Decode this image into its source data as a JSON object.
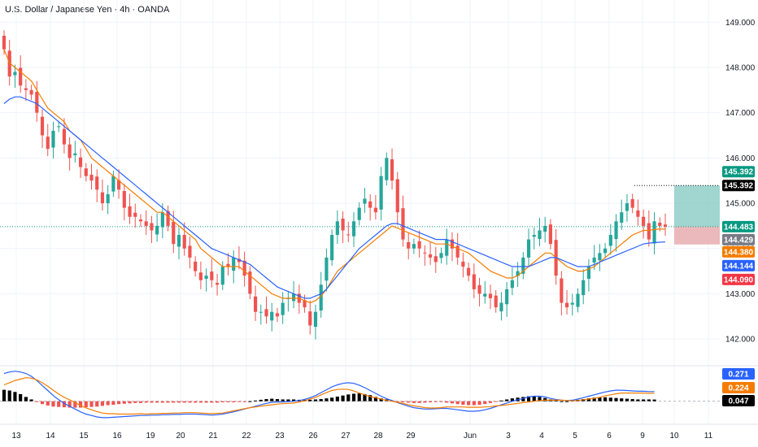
{
  "title": "U.S. Dollar / Japanese Yen · 4h · OANDA",
  "colors": {
    "up": "#26a69a",
    "down": "#ef5350",
    "ma_fast": "#f57c00",
    "ma_slow": "#2962ff",
    "hist_pos": "#000000",
    "hist_neg": "#ef5350",
    "grid": "#f0f3fa",
    "target_zone": "#80c7c0",
    "stop_zone": "#e6a8aa",
    "price_tag": "#089981",
    "black_tag": "#000000",
    "orange_tag": "#f57c00",
    "blue_tag": "#2962ff",
    "red_tag": "#f23645",
    "gray_tag": "#787b86",
    "macd_blue_tag": "#2962ff"
  },
  "chart_data": [
    {
      "type": "candlestick",
      "title": "U.S. Dollar / Japanese Yen · 4h · OANDA",
      "xlabel": "",
      "ylabel": "",
      "ylim": [
        141.5,
        149.4
      ],
      "grid": true,
      "x_ticks": [
        "13",
        "14",
        "15",
        "16",
        "19",
        "20",
        "21",
        "22",
        "23",
        "26",
        "27",
        "28",
        "29",
        "Jun",
        "3",
        "4",
        "5",
        "6",
        "9",
        "10",
        "11"
      ],
      "y_ticks": [
        "142.000",
        "143.000",
        "144.000",
        "145.000",
        "146.000",
        "147.000",
        "148.000",
        "149.000"
      ],
      "closes": [
        148.4,
        147.8,
        147.9,
        147.6,
        147.5,
        147.4,
        147.0,
        146.5,
        146.2,
        146.6,
        146.7,
        146.3,
        146.0,
        146.1,
        145.8,
        145.6,
        145.5,
        145.3,
        145.0,
        145.2,
        145.6,
        145.3,
        144.9,
        144.7,
        144.7,
        144.6,
        144.5,
        144.4,
        144.5,
        144.8,
        144.5,
        144.1,
        144.3,
        144.0,
        143.8,
        143.5,
        143.3,
        143.4,
        143.3,
        143.2,
        143.6,
        143.6,
        143.8,
        143.7,
        143.4,
        143.0,
        142.6,
        142.6,
        142.5,
        142.6,
        142.5,
        142.8,
        142.9,
        143.0,
        142.8,
        142.7,
        142.3,
        142.6,
        143.2,
        143.8,
        144.3,
        144.6,
        144.4,
        144.3,
        144.6,
        144.9,
        145.1,
        144.9,
        144.8,
        145.6,
        146.0,
        145.5,
        144.8,
        144.2,
        144.0,
        144.1,
        144.0,
        143.9,
        143.8,
        143.7,
        143.9,
        144.2,
        144.0,
        143.8,
        143.6,
        143.4,
        143.1,
        143.0,
        143.0,
        142.9,
        142.7,
        142.8,
        143.1,
        143.3,
        143.5,
        143.8,
        144.2,
        144.3,
        144.4,
        144.5,
        144.1,
        143.4,
        142.8,
        142.7,
        142.8,
        143.0,
        143.3,
        143.6,
        143.8,
        143.9,
        144.0,
        144.3,
        144.6,
        144.8,
        145.0,
        144.9,
        144.7,
        144.5,
        144.2,
        144.6,
        144.5,
        144.48
      ],
      "series": [
        {
          "name": "",
          "values": [
            148.4,
            148.1,
            148.0,
            147.9,
            147.8,
            147.7,
            147.5,
            147.3,
            147.1,
            147.0,
            146.9,
            146.8,
            146.6,
            146.5,
            146.4,
            146.2,
            146.0,
            145.9,
            145.8,
            145.7,
            145.6,
            145.5,
            145.4,
            145.3,
            145.2,
            145.1,
            145.0,
            144.9,
            144.8,
            144.8,
            144.7,
            144.6,
            144.5,
            144.4,
            144.3,
            144.2,
            144.0,
            143.9,
            143.8,
            143.7,
            143.6,
            143.6,
            143.6,
            143.6,
            143.5,
            143.4,
            143.3,
            143.2,
            143.1,
            143.0,
            142.95,
            142.9,
            142.9,
            142.9,
            142.9,
            142.85,
            142.8,
            142.85,
            142.95,
            143.1,
            143.3,
            143.5,
            143.6,
            143.7,
            143.8,
            143.9,
            144.0,
            144.1,
            144.2,
            144.3,
            144.4,
            144.5,
            144.45,
            144.4,
            144.35,
            144.3,
            144.25,
            144.2,
            144.15,
            144.1,
            144.1,
            144.1,
            144.05,
            144.0,
            143.95,
            143.9,
            143.8,
            143.7,
            143.6,
            143.5,
            143.45,
            143.4,
            143.35,
            143.35,
            143.4,
            143.5,
            143.6,
            143.7,
            143.8,
            143.9,
            143.9,
            143.8,
            143.7,
            143.6,
            143.55,
            143.5,
            143.5,
            143.55,
            143.6,
            143.7,
            143.8,
            143.9,
            144.0,
            144.1,
            144.2,
            144.3,
            144.35,
            144.4,
            144.4,
            144.42,
            144.43,
            144.429
          ]
        },
        {
          "name": "",
          "values": [
            147.2,
            147.3,
            147.35,
            147.35,
            147.3,
            147.25,
            147.2,
            147.1,
            147.0,
            146.9,
            146.8,
            146.7,
            146.6,
            146.5,
            146.4,
            146.3,
            146.2,
            146.1,
            146.0,
            145.9,
            145.8,
            145.7,
            145.6,
            145.5,
            145.4,
            145.3,
            145.2,
            145.1,
            145.0,
            144.9,
            144.8,
            144.7,
            144.6,
            144.5,
            144.4,
            144.3,
            144.2,
            144.1,
            144.0,
            143.95,
            143.9,
            143.85,
            143.8,
            143.75,
            143.7,
            143.65,
            143.55,
            143.45,
            143.35,
            143.25,
            143.15,
            143.1,
            143.05,
            143.0,
            142.95,
            142.9,
            142.9,
            142.95,
            143.0,
            143.1,
            143.25,
            143.4,
            143.55,
            143.7,
            143.85,
            144.0,
            144.1,
            144.2,
            144.3,
            144.4,
            144.5,
            144.55,
            144.55,
            144.5,
            144.45,
            144.4,
            144.35,
            144.3,
            144.25,
            144.2,
            144.2,
            144.2,
            144.15,
            144.1,
            144.05,
            144.0,
            143.95,
            143.9,
            143.85,
            143.8,
            143.75,
            143.7,
            143.65,
            143.6,
            143.6,
            143.6,
            143.6,
            143.65,
            143.7,
            143.75,
            143.8,
            143.8,
            143.75,
            143.7,
            143.65,
            143.6,
            143.6,
            143.6,
            143.65,
            143.7,
            143.75,
            143.8,
            143.85,
            143.9,
            143.95,
            144.0,
            144.05,
            144.1,
            144.12,
            144.13,
            144.14,
            144.144
          ]
        }
      ],
      "tags": {
        "current_price": "144.483",
        "target": "145.392",
        "target_line": "145.392",
        "ma_fast": "144.429",
        "ma_orange": "144.380",
        "ma_slow": "144.144",
        "stop": "144.090"
      }
    },
    {
      "type": "macd",
      "xlabel": "",
      "ylabel": "",
      "tags": {
        "macd": "0.271",
        "signal": "0.224",
        "hist": "0.047"
      },
      "histogram": [
        0.32,
        0.3,
        0.26,
        0.2,
        0.12,
        0.05,
        -0.02,
        -0.08,
        -0.12,
        -0.15,
        -0.16,
        -0.17,
        -0.18,
        -0.18,
        -0.18,
        -0.17,
        -0.16,
        -0.15,
        -0.13,
        -0.11,
        -0.1,
        -0.08,
        -0.07,
        -0.06,
        -0.05,
        -0.05,
        -0.04,
        -0.04,
        -0.04,
        -0.04,
        -0.04,
        -0.04,
        -0.04,
        -0.04,
        -0.04,
        -0.04,
        -0.04,
        -0.04,
        -0.04,
        -0.04,
        -0.03,
        -0.03,
        -0.03,
        -0.02,
        -0.01,
        0.0,
        0.02,
        0.04,
        0.06,
        0.07,
        0.06,
        0.05,
        0.05,
        0.05,
        0.04,
        0.04,
        0.04,
        0.05,
        0.06,
        0.08,
        0.1,
        0.13,
        0.16,
        0.19,
        0.21,
        0.22,
        0.2,
        0.17,
        0.12,
        0.08,
        0.05,
        0.02,
        -0.01,
        -0.03,
        -0.04,
        -0.05,
        -0.05,
        -0.04,
        -0.03,
        -0.02,
        -0.02,
        -0.04,
        -0.06,
        -0.08,
        -0.1,
        -0.11,
        -0.11,
        -0.1,
        -0.08,
        -0.05,
        -0.02,
        0.02,
        0.05,
        0.08,
        0.1,
        0.12,
        0.14,
        0.14,
        0.12,
        0.09,
        0.05,
        0.02,
        0.0,
        0.0,
        0.02,
        0.04,
        0.06,
        0.08,
        0.1,
        0.11,
        0.11,
        0.1,
        0.09,
        0.08,
        0.07,
        0.06,
        0.05,
        0.05,
        0.05,
        0.047
      ],
      "macd_line": [
        0.78,
        0.82,
        0.84,
        0.82,
        0.78,
        0.7,
        0.58,
        0.44,
        0.3,
        0.16,
        0.04,
        -0.06,
        -0.14,
        -0.22,
        -0.3,
        -0.36,
        -0.4,
        -0.44,
        -0.46,
        -0.46,
        -0.45,
        -0.44,
        -0.43,
        -0.42,
        -0.41,
        -0.4,
        -0.4,
        -0.39,
        -0.39,
        -0.38,
        -0.38,
        -0.37,
        -0.37,
        -0.36,
        -0.36,
        -0.36,
        -0.37,
        -0.38,
        -0.39,
        -0.38,
        -0.36,
        -0.33,
        -0.3,
        -0.26,
        -0.22,
        -0.18,
        -0.14,
        -0.1,
        -0.06,
        -0.03,
        -0.02,
        -0.02,
        -0.01,
        0.0,
        0.02,
        0.05,
        0.1,
        0.16,
        0.24,
        0.32,
        0.4,
        0.46,
        0.5,
        0.52,
        0.5,
        0.45,
        0.38,
        0.3,
        0.22,
        0.14,
        0.07,
        0.02,
        -0.04,
        -0.09,
        -0.14,
        -0.18,
        -0.2,
        -0.22,
        -0.22,
        -0.21,
        -0.2,
        -0.2,
        -0.22,
        -0.24,
        -0.26,
        -0.28,
        -0.28,
        -0.27,
        -0.24,
        -0.2,
        -0.15,
        -0.1,
        -0.05,
        0.0,
        0.04,
        0.08,
        0.12,
        0.14,
        0.14,
        0.12,
        0.08,
        0.05,
        0.03,
        0.02,
        0.03,
        0.06,
        0.1,
        0.14,
        0.18,
        0.22,
        0.26,
        0.29,
        0.31,
        0.31,
        0.3,
        0.29,
        0.28,
        0.28,
        0.27,
        0.271
      ],
      "signal_line": [
        0.46,
        0.52,
        0.58,
        0.62,
        0.66,
        0.65,
        0.6,
        0.52,
        0.42,
        0.31,
        0.2,
        0.11,
        0.04,
        -0.04,
        -0.12,
        -0.19,
        -0.24,
        -0.29,
        -0.33,
        -0.35,
        -0.35,
        -0.36,
        -0.36,
        -0.36,
        -0.36,
        -0.35,
        -0.36,
        -0.35,
        -0.35,
        -0.34,
        -0.34,
        -0.33,
        -0.33,
        -0.32,
        -0.32,
        -0.32,
        -0.33,
        -0.34,
        -0.35,
        -0.34,
        -0.33,
        -0.3,
        -0.27,
        -0.24,
        -0.21,
        -0.18,
        -0.16,
        -0.14,
        -0.12,
        -0.1,
        -0.08,
        -0.07,
        -0.06,
        -0.05,
        -0.02,
        0.01,
        0.06,
        0.11,
        0.18,
        0.24,
        0.3,
        0.33,
        0.34,
        0.33,
        0.29,
        0.23,
        0.18,
        0.13,
        0.1,
        0.06,
        0.02,
        0.0,
        -0.03,
        -0.06,
        -0.1,
        -0.13,
        -0.15,
        -0.18,
        -0.19,
        -0.19,
        -0.18,
        -0.16,
        -0.16,
        -0.16,
        -0.16,
        -0.17,
        -0.17,
        -0.17,
        -0.16,
        -0.15,
        -0.13,
        -0.12,
        -0.1,
        -0.08,
        -0.06,
        -0.04,
        -0.02,
        0.0,
        0.02,
        0.03,
        0.03,
        0.03,
        0.03,
        0.02,
        0.01,
        0.02,
        0.04,
        0.06,
        0.08,
        0.11,
        0.15,
        0.18,
        0.21,
        0.23,
        0.23,
        0.23,
        0.23,
        0.23,
        0.22,
        0.224
      ]
    }
  ]
}
